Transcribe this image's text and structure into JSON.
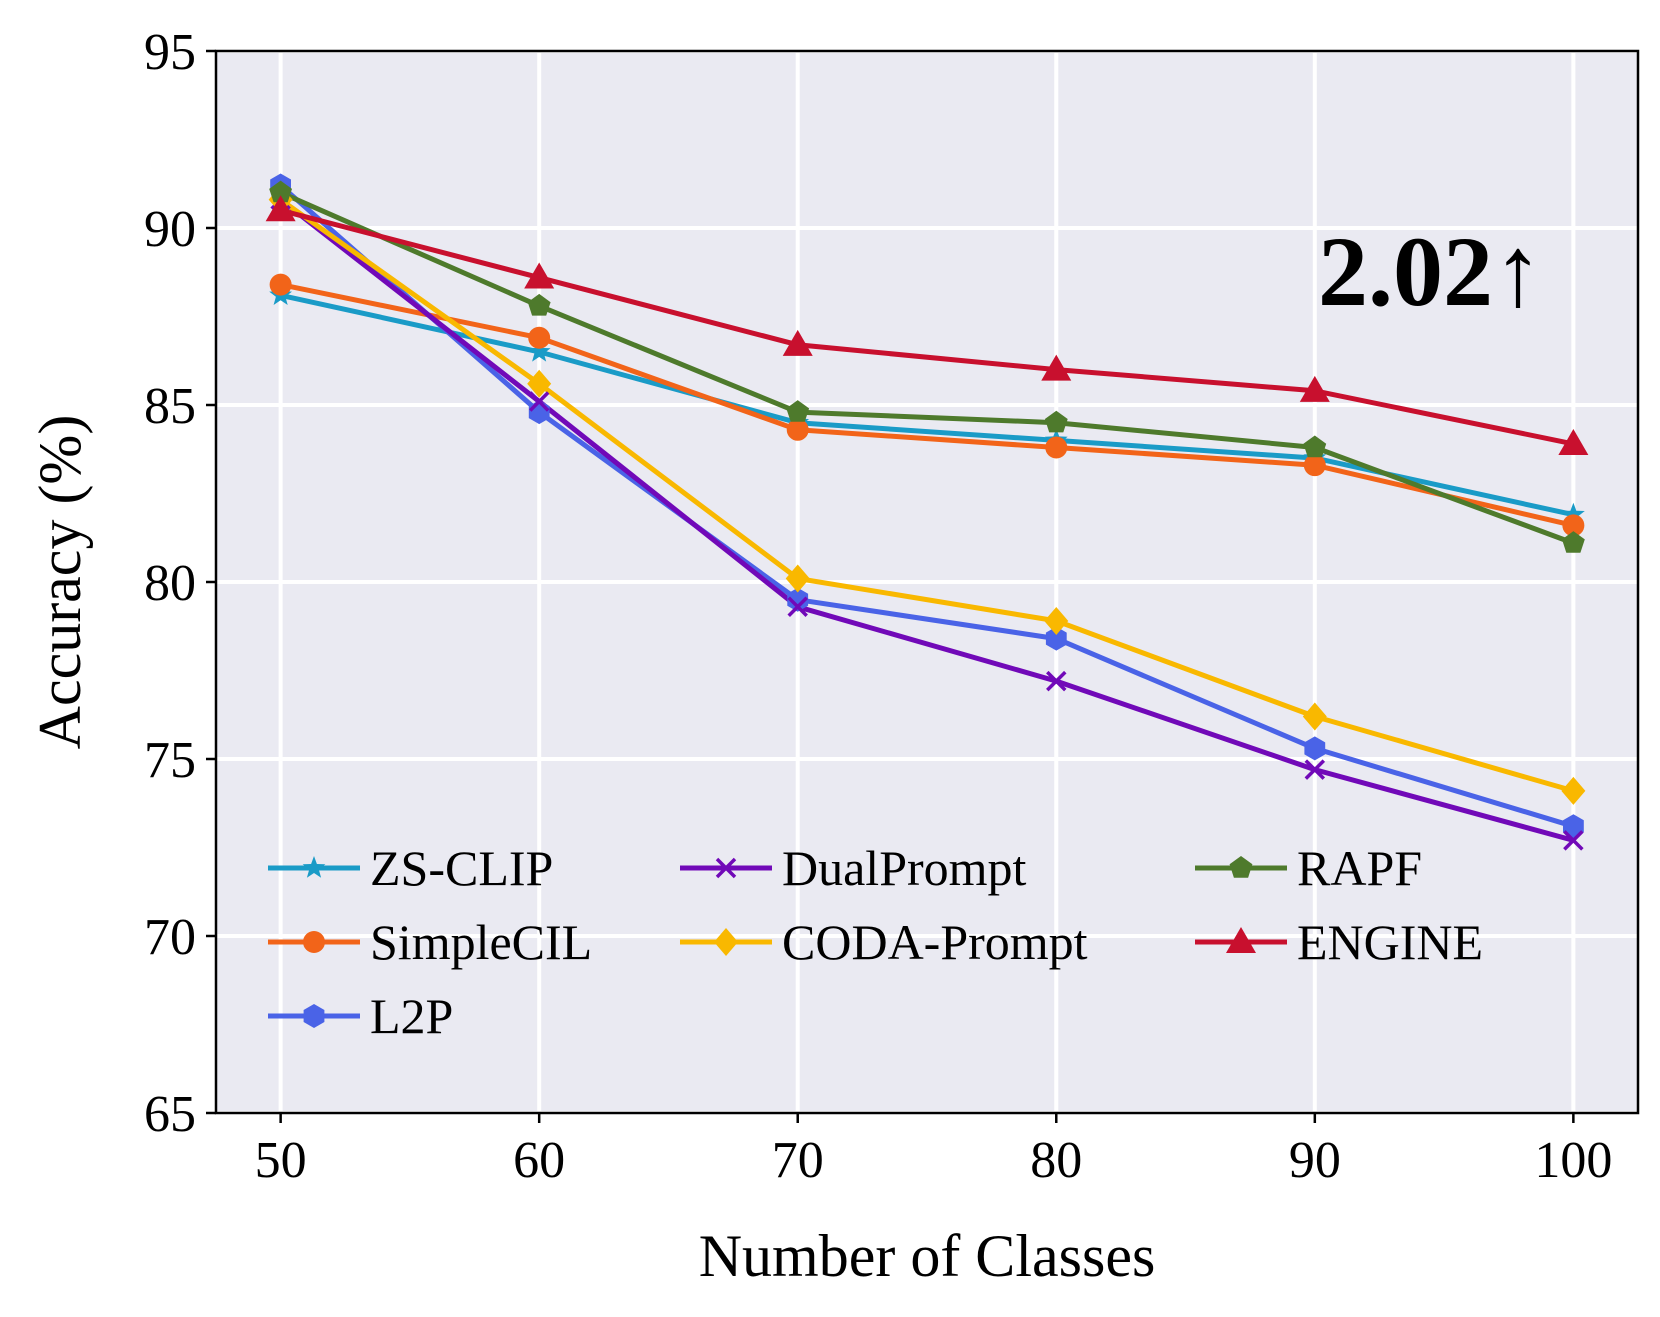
{
  "chart_data": {
    "type": "line",
    "title": "",
    "xlabel": "Number of Classes",
    "ylabel": "Accuracy (%)",
    "x": [
      50,
      60,
      70,
      80,
      90,
      100
    ],
    "x_ticks": [
      "50",
      "60",
      "70",
      "80",
      "90",
      "100"
    ],
    "y_ticks": [
      "65",
      "70",
      "75",
      "80",
      "85",
      "90",
      "95"
    ],
    "xlim": [
      47.5,
      102.5
    ],
    "ylim": [
      65,
      95
    ],
    "grid": true,
    "legend_position": "lower-left",
    "annotation": "2.02↑",
    "series": [
      {
        "name": "ZS-CLIP",
        "color": "#1a9bc7",
        "marker": "star",
        "values": [
          88.1,
          86.5,
          84.5,
          84.0,
          83.5,
          81.9
        ]
      },
      {
        "name": "SimpleCIL",
        "color": "#f26419",
        "marker": "circle",
        "values": [
          88.4,
          86.9,
          84.3,
          83.8,
          83.3,
          81.6
        ]
      },
      {
        "name": "L2P",
        "color": "#4a63e7",
        "marker": "hexagon",
        "values": [
          91.2,
          84.8,
          79.5,
          78.4,
          75.3,
          73.1
        ]
      },
      {
        "name": "DualPrompt",
        "color": "#7109b8",
        "marker": "x",
        "values": [
          90.8,
          85.1,
          79.3,
          77.2,
          74.7,
          72.7
        ]
      },
      {
        "name": "CODA-Prompt",
        "color": "#f9b800",
        "marker": "diamond",
        "values": [
          90.8,
          85.6,
          80.1,
          78.9,
          76.2,
          74.1
        ]
      },
      {
        "name": "RAPF",
        "color": "#4e7a2c",
        "marker": "pentagon",
        "values": [
          91.0,
          87.8,
          84.8,
          84.5,
          83.8,
          81.1
        ]
      },
      {
        "name": "ENGINE",
        "color": "#c8102e",
        "marker": "triangle",
        "values": [
          90.5,
          88.6,
          86.7,
          86.0,
          85.4,
          83.9
        ]
      }
    ]
  }
}
